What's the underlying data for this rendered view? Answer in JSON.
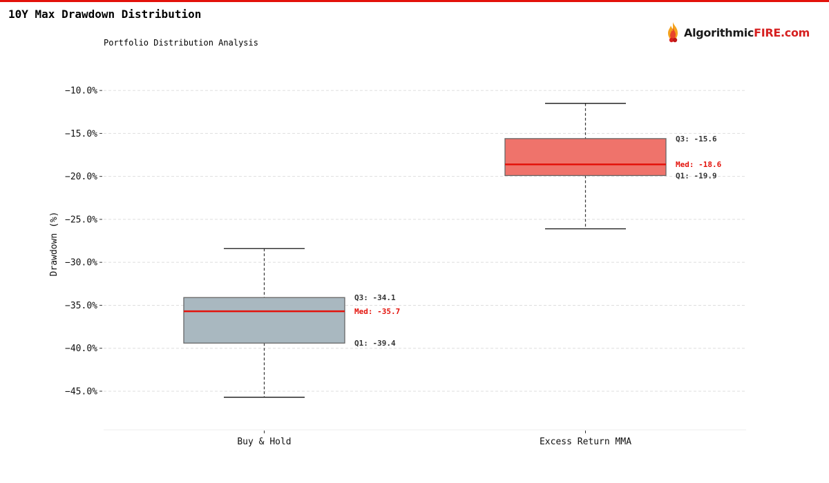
{
  "header": {
    "title": "10Y Max Drawdown Distribution",
    "subtitle": "Portfolio Distribution Analysis",
    "accent_color": "#e3120b"
  },
  "logo": {
    "name_part1": "Algorithmic",
    "name_part2": "FIRE.com",
    "icon": "flame-icon"
  },
  "chart_data": {
    "type": "boxplot",
    "ylabel": "Drawdown (%)",
    "xlabel": "",
    "ylim": [
      -49.5,
      -7.5
    ],
    "yticks": [
      -10,
      -15,
      -20,
      -25,
      -30,
      -35,
      -40,
      -45
    ],
    "ytick_labels": [
      "−10.0%",
      "−15.0%",
      "−20.0%",
      "−25.0%",
      "−30.0%",
      "−35.0%",
      "−40.0%",
      "−45.0%"
    ],
    "grid": true,
    "categories": [
      "Buy & Hold",
      "Excess Return MMA"
    ],
    "series": [
      {
        "category": "Buy & Hold",
        "whisker_low": -45.7,
        "q1": -39.4,
        "median": -35.7,
        "q3": -34.1,
        "whisker_high": -28.4,
        "fill": "#a9b8c0",
        "q3_label": "Q3: -34.1",
        "median_label": "Med: -35.7",
        "q1_label": "Q1: -39.4"
      },
      {
        "category": "Excess Return MMA",
        "whisker_low": -26.1,
        "q1": -19.9,
        "median": -18.6,
        "q3": -15.6,
        "whisker_high": -11.5,
        "fill": "#ef736b",
        "q3_label": "Q3: -15.6",
        "median_label": "Med: -18.6",
        "q1_label": "Q1: -19.9"
      }
    ],
    "median_color": "#e3120b",
    "box_edge_color": "#666666",
    "label_color": "#333333"
  }
}
